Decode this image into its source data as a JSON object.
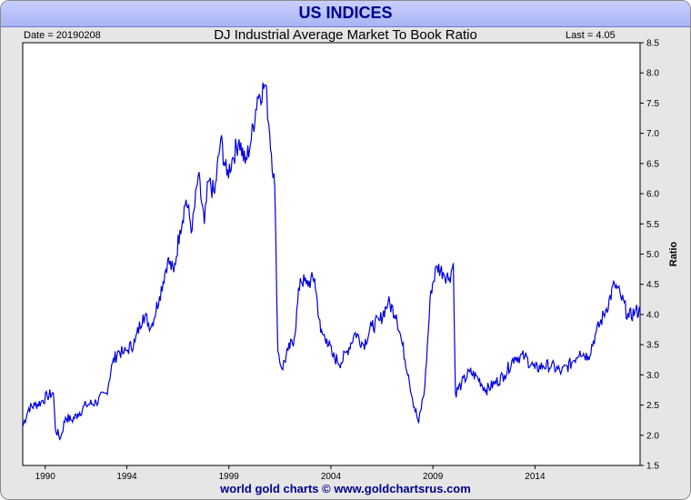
{
  "header": {
    "title": "US INDICES"
  },
  "info": {
    "date_label": "Date = 20190208",
    "last_label": "Last = 4.05"
  },
  "footer": {
    "credit": "world gold charts © www.goldchartsrus.com"
  },
  "colors": {
    "line": "#0000dd",
    "banner": "#b4bcf8",
    "title": "#00008b"
  },
  "chart_data": {
    "type": "line",
    "title": "DJ Industrial Average Market To Book Ratio",
    "ylabel": "Ratio",
    "xlabel": "",
    "x_ticks": [
      "1990",
      "1994",
      "1999",
      "2004",
      "2009",
      "2014"
    ],
    "y_ticks": [
      "1.5",
      "2.0",
      "2.5",
      "3.0",
      "3.5",
      "4.0",
      "4.5",
      "5.0",
      "5.5",
      "6.0",
      "6.5",
      "7.0",
      "7.5",
      "8.0",
      "8.5"
    ],
    "xlim": [
      1988.9,
      2019.15
    ],
    "ylim": [
      1.5,
      8.5
    ],
    "grid": false,
    "series": [
      {
        "x": [
          1988.9,
          1989.2,
          1989.5,
          1989.8,
          1990.1,
          1990.4,
          1990.5,
          1990.75,
          1991.0,
          1991.3,
          1991.6,
          1992.0,
          1992.5,
          1993.0,
          1993.3,
          1993.6,
          1993.8,
          1994.0,
          1994.4,
          1994.8,
          1995.2,
          1995.6,
          1996.0,
          1996.3,
          1996.6,
          1996.9,
          1997.2,
          1997.5,
          1997.8,
          1998.0,
          1998.3,
          1998.6,
          1998.9,
          1999.2,
          1999.5,
          1999.8,
          2000.1,
          2000.4,
          2000.8,
          2001.0,
          2001.25,
          2001.4,
          2001.6,
          2001.9,
          2002.2,
          2002.5,
          2002.8,
          2003.2,
          2003.5,
          2003.8,
          2004.1,
          2004.5,
          2004.8,
          2005.2,
          2005.6,
          2006.0,
          2006.4,
          2006.8,
          2007.2,
          2007.5,
          2007.8,
          2008.0,
          2008.3,
          2008.6,
          2008.9,
          2009.2,
          2009.5,
          2009.8,
          2010.0,
          2010.1,
          2010.4,
          2010.8,
          2011.2,
          2011.6,
          2012.0,
          2012.5,
          2013.0,
          2013.5,
          2014.0,
          2014.4,
          2014.8,
          2015.3,
          2015.8,
          2016.2,
          2016.6,
          2017.0,
          2017.5,
          2017.9,
          2018.2,
          2018.6,
          2018.9,
          2019.15
        ],
        "y": [
          2.15,
          2.45,
          2.5,
          2.55,
          2.65,
          2.7,
          2.1,
          1.95,
          2.3,
          2.25,
          2.35,
          2.5,
          2.55,
          2.7,
          3.2,
          3.4,
          3.35,
          3.4,
          3.55,
          4.0,
          3.8,
          4.3,
          4.9,
          4.7,
          5.4,
          5.9,
          5.4,
          6.3,
          5.5,
          6.2,
          6.0,
          6.9,
          6.3,
          6.6,
          6.9,
          6.5,
          6.9,
          7.6,
          7.8,
          7.0,
          6.1,
          3.4,
          3.1,
          3.4,
          3.6,
          4.6,
          4.5,
          4.6,
          3.7,
          3.6,
          3.3,
          3.2,
          3.4,
          3.7,
          3.5,
          3.8,
          3.9,
          4.2,
          4.0,
          3.5,
          3.0,
          2.6,
          2.2,
          2.8,
          4.4,
          4.8,
          4.7,
          4.6,
          4.85,
          2.7,
          2.85,
          3.05,
          2.95,
          2.75,
          2.85,
          3.0,
          3.3,
          3.3,
          3.1,
          3.15,
          3.15,
          3.05,
          3.2,
          3.4,
          3.3,
          3.7,
          4.1,
          4.5,
          4.3,
          3.95,
          4.05,
          4.05
        ]
      }
    ]
  }
}
